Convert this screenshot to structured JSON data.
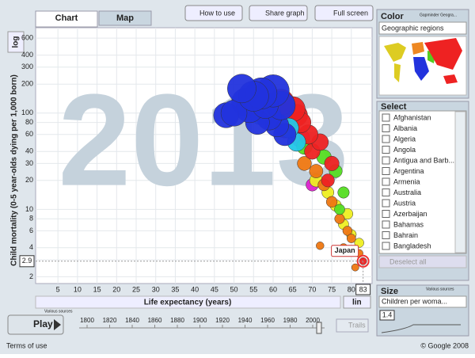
{
  "tabs": [
    "Chart",
    "Map"
  ],
  "buttons": [
    "How to use",
    "Share graph",
    "Full screen"
  ],
  "chart_data": {
    "type": "scatter",
    "watermark": "2013",
    "xlabel": "Life expectancy (years)",
    "ylabel": "Child mortality (0-5 year-olds dying per 1,000 born)",
    "x": [
      52,
      55,
      57,
      60,
      58,
      50,
      48,
      54,
      62,
      56,
      59,
      61,
      63,
      53,
      57,
      64,
      66,
      62,
      65,
      67,
      69,
      66,
      72,
      75,
      70,
      74,
      68,
      73,
      76,
      78,
      77,
      63,
      68,
      71,
      73,
      75,
      77,
      80,
      78,
      82,
      81,
      79,
      72,
      71,
      74,
      76,
      78,
      80,
      82,
      79,
      67,
      70,
      83
    ],
    "values": [
      180,
      150,
      160,
      170,
      120,
      100,
      95,
      110,
      120,
      80,
      90,
      75,
      60,
      130,
      100,
      70,
      50,
      130,
      110,
      80,
      60,
      95,
      50,
      30,
      40,
      20,
      45,
      35,
      25,
      15,
      10,
      70,
      30,
      25,
      18,
      12,
      8,
      5,
      4,
      3.5,
      2.5,
      6,
      4.2,
      20,
      15,
      11,
      7,
      5.5,
      4.5,
      9,
      55,
      18,
      2.9
    ],
    "sizes": [
      5.5,
      5.8,
      6,
      6.2,
      5,
      5,
      4.8,
      5.2,
      5.5,
      4.6,
      4.8,
      4.5,
      4.3,
      5.4,
      4.5,
      3.8,
      3.5,
      5,
      4.8,
      4,
      3.7,
      4.2,
      3.2,
      2.8,
      3,
      2.5,
      3,
      2.8,
      2.5,
      2.2,
      2,
      3.8,
      2.7,
      2.6,
      2.3,
      2.1,
      1.9,
      1.7,
      1.6,
      1.5,
      1.4,
      1.8,
      1.5,
      2.5,
      2.3,
      2.2,
      2,
      1.9,
      1.8,
      2.1,
      3.5,
      2.4,
      1.4
    ],
    "colors": [
      "#2233dd",
      "#2233dd",
      "#2233dd",
      "#2233dd",
      "#2233dd",
      "#2233dd",
      "#2233dd",
      "#2233dd",
      "#2233dd",
      "#2233dd",
      "#2233dd",
      "#2233dd",
      "#2233dd",
      "#2233dd",
      "#22c8e8",
      "#22c8e8",
      "#22c8e8",
      "#ee2222",
      "#ee2222",
      "#ee2222",
      "#ee2222",
      "#ee2222",
      "#ee2222",
      "#ee2222",
      "#ee2222",
      "#ee2222",
      "#55dd22",
      "#55dd22",
      "#55dd22",
      "#55dd22",
      "#55dd22",
      "#ee7711",
      "#ee7711",
      "#ee7711",
      "#ee7711",
      "#ee7711",
      "#ee7711",
      "#ee7711",
      "#ee7711",
      "#ee7711",
      "#ee7711",
      "#ee7711",
      "#ee7711",
      "#eeee22",
      "#eeee22",
      "#eeee22",
      "#eeee22",
      "#eeee22",
      "#eeee22",
      "#eeee22",
      "#dd22cc",
      "#dd22cc",
      "#ee2222"
    ],
    "xlim": [
      -0.7,
      85.3
    ],
    "ylim": [
      1.7,
      770
    ],
    "xticks": [
      5,
      10,
      15,
      20,
      25,
      30,
      35,
      40,
      45,
      50,
      55,
      60,
      65,
      70,
      75,
      80
    ],
    "yticks": [
      2,
      3,
      4,
      6,
      8,
      10,
      20,
      30,
      40,
      60,
      80,
      100,
      200,
      300,
      400,
      600
    ],
    "ylog": true,
    "grid": true,
    "annotation": "Japan",
    "x_readout": "83",
    "y_readout": "2.9",
    "y_scale": "log",
    "x_scale": "lin",
    "source": "Various sources"
  },
  "color_panel": {
    "title": "Color",
    "source": "Gapminder Geogra...",
    "selected": "Geographic regions"
  },
  "select_panel": {
    "title": "Select",
    "items": [
      "Afghanistan",
      "Albania",
      "Algeria",
      "Angola",
      "Antigua and Barb...",
      "Argentina",
      "Armenia",
      "Australia",
      "Austria",
      "Azerbaijan",
      "Bahamas",
      "Bahrain",
      "Bangladesh"
    ],
    "button": "Deselect all"
  },
  "size_panel": {
    "title": "Size",
    "source": "Various sources",
    "selected": "Children per woma...",
    "readout": "1.4"
  },
  "timeline": {
    "play": "Play",
    "labels": [
      "1800",
      "1820",
      "1840",
      "1860",
      "1880",
      "1900",
      "1920",
      "1940",
      "1960",
      "1980",
      "2000"
    ],
    "trails": "Trails"
  },
  "footer": {
    "terms": "Terms of use",
    "copyright": "© Google 2008"
  }
}
